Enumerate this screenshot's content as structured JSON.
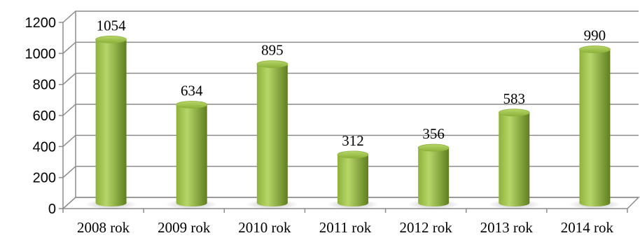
{
  "chart_data": {
    "type": "bar",
    "categories": [
      "2008 rok",
      "2009 rok",
      "2010 rok",
      "2011 rok",
      "2012 rok",
      "2013 rok",
      "2014 rok"
    ],
    "values": [
      1054,
      634,
      895,
      312,
      356,
      583,
      990
    ],
    "title": "",
    "xlabel": "",
    "ylabel": "",
    "ylim": [
      0,
      1200
    ],
    "yticks": [
      0,
      200,
      400,
      600,
      800,
      1000,
      1200
    ],
    "grid": true,
    "legend": "none",
    "style": "3d-cylinder",
    "colors": {
      "bar_light": "#b7d66a",
      "bar_mid": "#8db23a",
      "bar_dark": "#5f7f1e",
      "grid": "#8c8c8c",
      "axis": "#8c8c8c"
    }
  }
}
